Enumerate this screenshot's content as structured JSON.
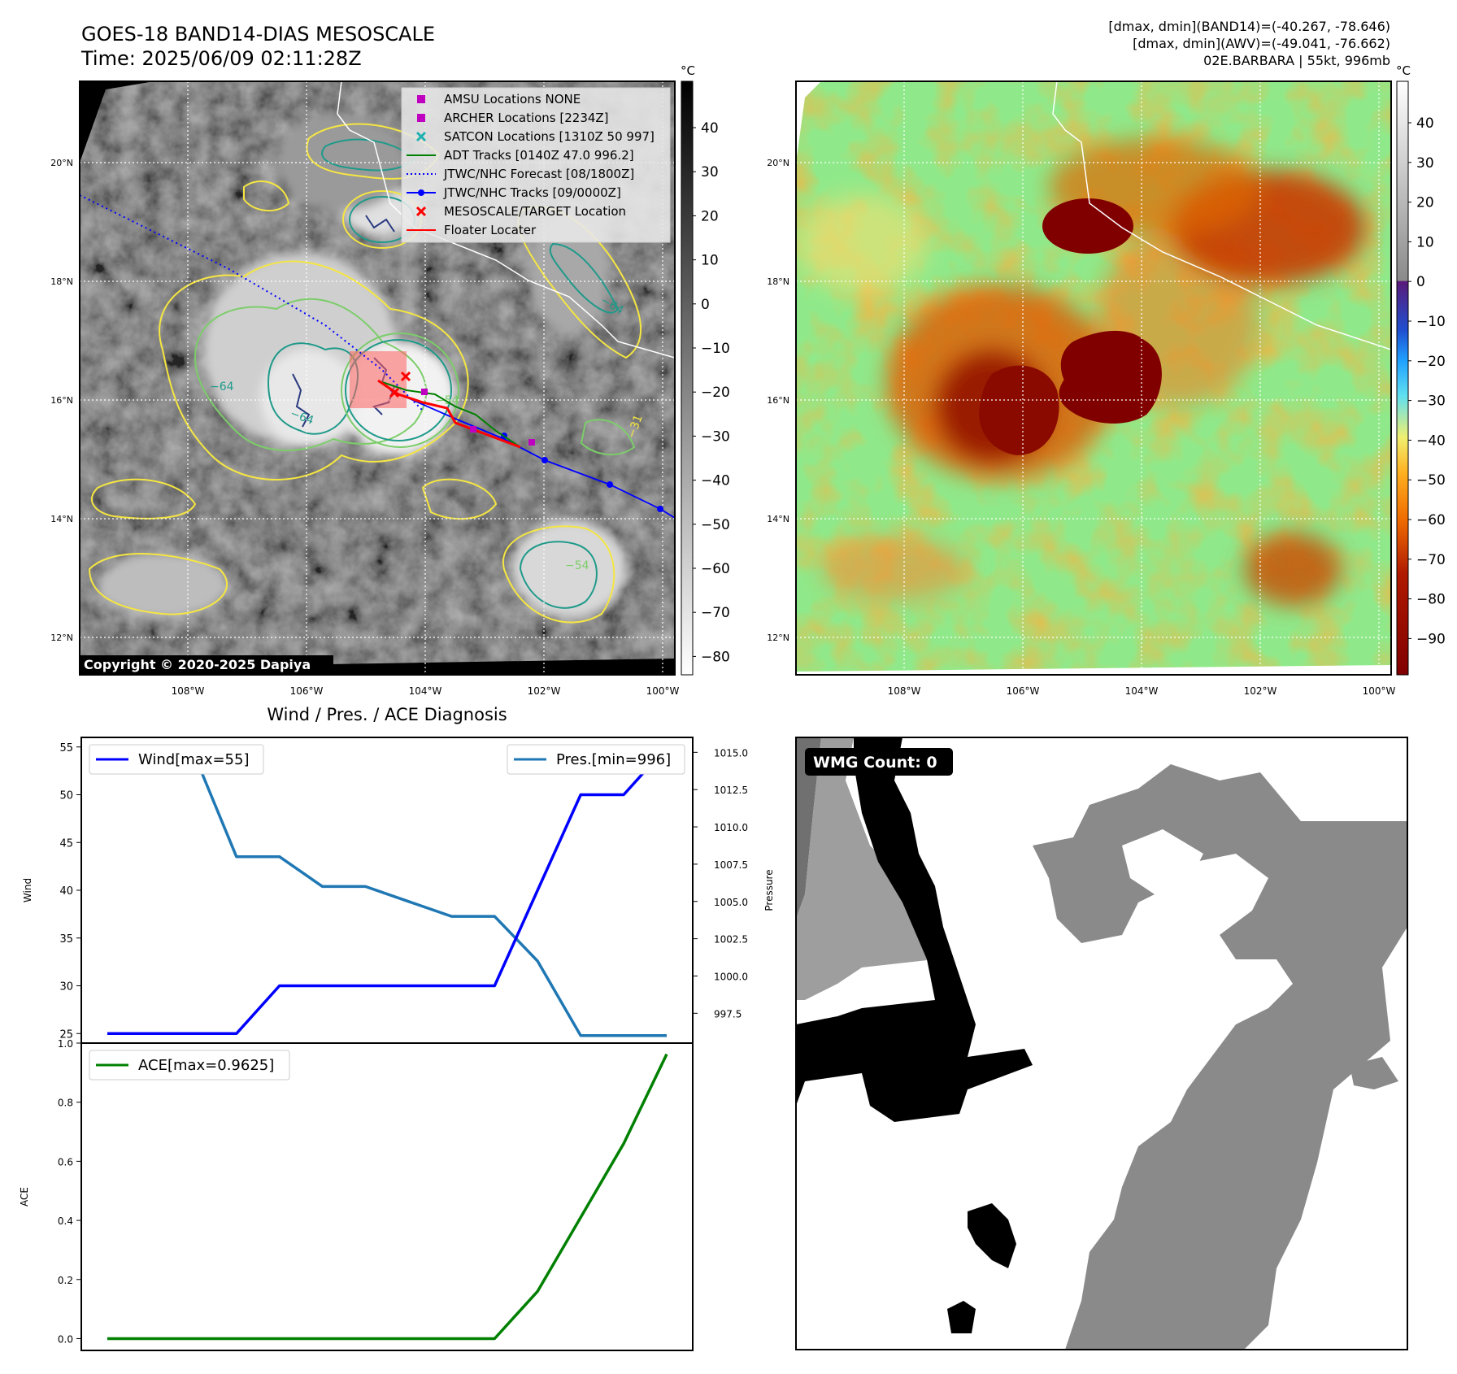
{
  "header": {
    "title_line1": "GOES-18 BAND14-DIAS MESOSCALE",
    "title_line2": "Time: 2025/06/09 02:11:28Z",
    "stats_line1": "[dmax, dmin](BAND14)=(-40.267, -78.646)",
    "stats_line2": "[dmax, dmin](AWV)=(-49.041, -76.662)",
    "stats_line3": "02E.BARBARA | 55kt, 996mb"
  },
  "ir_panel": {
    "lat_ticks": [
      "20°N",
      "18°N",
      "16°N",
      "14°N",
      "12°N"
    ],
    "lon_ticks": [
      "108°W",
      "106°W",
      "104°W",
      "102°W",
      "100°W"
    ],
    "colorbar_unit": "°C",
    "colorbar_ticks": [
      "40",
      "30",
      "20",
      "10",
      "0",
      "−10",
      "−20",
      "−30",
      "−40",
      "−50",
      "−60",
      "−70",
      "−80"
    ],
    "copyright": "Copyright © 2020-2025 Dapiya",
    "contour_labels": [
      "−64",
      "−54",
      "−31",
      "−64",
      "−54",
      "−64"
    ],
    "legend": [
      {
        "label": "AMSU Locations NONE",
        "symbol": "square",
        "color": "#c000c0"
      },
      {
        "label": "ARCHER Locations [2234Z]",
        "symbol": "square",
        "color": "#c000c0"
      },
      {
        "label": "SATCON Locations [1310Z 50 997]",
        "symbol": "x",
        "color": "#20b0b0"
      },
      {
        "label": "ADT Tracks [0140Z 47.0 996.2]",
        "symbol": "line",
        "color": "#008000"
      },
      {
        "label": "JTWC/NHC Forecast [08/1800Z]",
        "symbol": "dotted",
        "color": "#0000ff"
      },
      {
        "label": "JTWC/NHC Tracks [09/0000Z]",
        "symbol": "dotline",
        "color": "#0000ff"
      },
      {
        "label": "MESOSCALE/TARGET Location",
        "symbol": "x",
        "color": "#ff0000"
      },
      {
        "label": "Floater Locater",
        "symbol": "line",
        "color": "#ff0000"
      }
    ]
  },
  "awv_panel": {
    "lat_ticks": [
      "20°N",
      "18°N",
      "16°N",
      "14°N",
      "12°N"
    ],
    "lon_ticks": [
      "108°W",
      "106°W",
      "104°W",
      "102°W",
      "100°W"
    ],
    "colorbar_unit": "°C",
    "colorbar_ticks": [
      "40",
      "30",
      "20",
      "10",
      "0",
      "−10",
      "−20",
      "−30",
      "−40",
      "−50",
      "−60",
      "−70",
      "−80",
      "−90"
    ]
  },
  "wmg_panel": {
    "badge": "WMG Count: 0"
  },
  "colors": {
    "wind": "#0000ff",
    "pressure": "#1f77b4",
    "ace": "#008000",
    "jtwc_track": "#0000ff",
    "adt_track": "#008000",
    "floater": "#ff0000",
    "contour_yellow": "#f5e642",
    "contour_green": "#7ccd6a",
    "contour_teal": "#1f9a8a",
    "contour_navy": "#2a3a80"
  },
  "chart_data": [
    {
      "type": "line",
      "title": "Wind / Pres. / ACE Diagnosis",
      "ylabel": "Wind",
      "ylabel_right": "Pressure",
      "ylim": [
        24,
        56
      ],
      "ylim_right": [
        995.5,
        1016
      ],
      "yticks": [
        "55",
        "50",
        "45",
        "40",
        "35",
        "30",
        "25"
      ],
      "yticks_right": [
        "1015.0",
        "1012.5",
        "1010.0",
        "1007.5",
        "1005.0",
        "1002.5",
        "1000.0",
        "997.5"
      ],
      "x": [
        0,
        1,
        2,
        3,
        4,
        5,
        6,
        7,
        8,
        9,
        10,
        11,
        12,
        13
      ],
      "series": [
        {
          "name": "Wind[max=55]",
          "axis": "left",
          "values": [
            25,
            25,
            25,
            25,
            30,
            30,
            30,
            30,
            30,
            30,
            40,
            50,
            50,
            55
          ]
        },
        {
          "name": "Pres.[min=996]",
          "axis": "right",
          "values": [
            1015,
            1015,
            1015,
            1008,
            1008,
            1006,
            1006,
            1005,
            1004,
            1004,
            1001,
            996,
            996,
            996
          ]
        }
      ]
    },
    {
      "type": "line",
      "ylabel": "ACE",
      "ylim": [
        -0.04,
        1.0
      ],
      "yticks": [
        "1.0",
        "0.8",
        "0.6",
        "0.4",
        "0.2",
        "0.0"
      ],
      "x": [
        0,
        1,
        2,
        3,
        4,
        5,
        6,
        7,
        8,
        9,
        10,
        11,
        12,
        13
      ],
      "series": [
        {
          "name": "ACE[max=0.9625]",
          "values": [
            0,
            0,
            0,
            0,
            0,
            0,
            0,
            0,
            0,
            0,
            0.16,
            0.41,
            0.66,
            0.9625
          ]
        }
      ]
    }
  ]
}
